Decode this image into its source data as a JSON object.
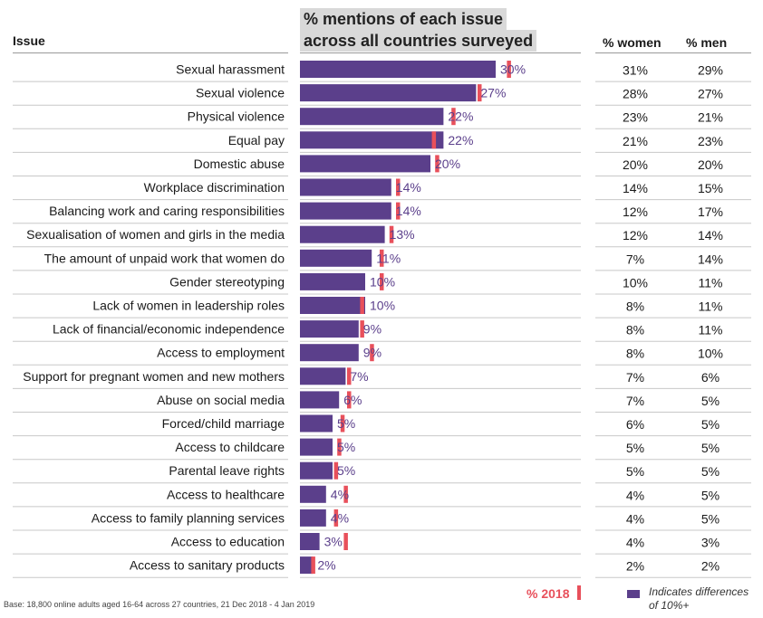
{
  "header": {
    "issue_label": "Issue",
    "title_line1": "% mentions of each issue",
    "title_line2": "across all countries surveyed",
    "women_label": "% women",
    "men_label": "% men"
  },
  "colors": {
    "bar": "#5b3f8b",
    "marker_2018": "#e8505b",
    "value_text": "#5b3f8b"
  },
  "footer": {
    "base_note": "Base: 18,800 online adults aged 16-64 across 27 countries,  21 Dec 2018 - 4 Jan  2019",
    "legend_2018": "% 2018",
    "legend_diff": "Indicates differences of 10%+"
  },
  "chart_data": {
    "type": "bar",
    "orientation": "horizontal",
    "title": "% mentions of each issue across all countries surveyed",
    "xlim": [
      0,
      35
    ],
    "categories": [
      "Sexual harassment",
      "Sexual violence",
      "Physical violence",
      "Equal pay",
      "Domestic abuse",
      "Workplace discrimination",
      "Balancing work and caring responsibilities",
      "Sexualisation of women and girls in the media",
      "The amount of unpaid work that women do",
      "Gender stereotyping",
      "Lack of women in leadership roles",
      "Lack of financial/economic independence",
      "Access to employment",
      "Support for pregnant women and new mothers",
      "Abuse on social media",
      "Forced/child marriage",
      "Access to childcare",
      "Parental leave rights",
      "Access to healthcare",
      "Access to family planning services",
      "Access to education",
      "Access to sanitary products"
    ],
    "series": [
      {
        "name": "% mentions",
        "values": [
          30,
          27,
          22,
          22,
          20,
          14,
          14,
          13,
          11,
          10,
          10,
          9,
          9,
          7,
          6,
          5,
          5,
          5,
          4,
          4,
          3,
          2
        ]
      },
      {
        "name": "% 2018",
        "values": [
          32,
          27.5,
          23.5,
          20.5,
          21,
          15,
          15,
          14,
          12.5,
          12.5,
          9.5,
          9.5,
          11,
          7.5,
          7.5,
          6.5,
          6,
          5.5,
          7,
          5.5,
          7,
          2
        ]
      },
      {
        "name": "% women",
        "values": [
          31,
          28,
          23,
          21,
          20,
          14,
          12,
          12,
          7,
          10,
          8,
          8,
          8,
          7,
          7,
          6,
          5,
          5,
          4,
          4,
          4,
          2
        ]
      },
      {
        "name": "% men",
        "values": [
          29,
          27,
          21,
          23,
          20,
          15,
          17,
          14,
          14,
          11,
          11,
          11,
          10,
          6,
          5,
          5,
          5,
          5,
          5,
          5,
          3,
          2
        ]
      }
    ],
    "value_labels": [
      "30%",
      "27%",
      "22%",
      "22%",
      "20%",
      "14%",
      "14%",
      "13%",
      "11%",
      "10%",
      "10%",
      "9%",
      "9%",
      "7%",
      "6%",
      "5%",
      "5%",
      "5%",
      "4%",
      "4%",
      "3%",
      "2%"
    ],
    "women_labels": [
      "31%",
      "28%",
      "23%",
      "21%",
      "20%",
      "14%",
      "12%",
      "12%",
      "7%",
      "10%",
      "8%",
      "8%",
      "8%",
      "7%",
      "7%",
      "6%",
      "5%",
      "5%",
      "4%",
      "4%",
      "4%",
      "2%"
    ],
    "men_labels": [
      "29%",
      "27%",
      "21%",
      "23%",
      "20%",
      "15%",
      "17%",
      "14%",
      "14%",
      "11%",
      "11%",
      "11%",
      "10%",
      "6%",
      "5%",
      "5%",
      "5%",
      "5%",
      "5%",
      "5%",
      "3%",
      "2%"
    ]
  }
}
